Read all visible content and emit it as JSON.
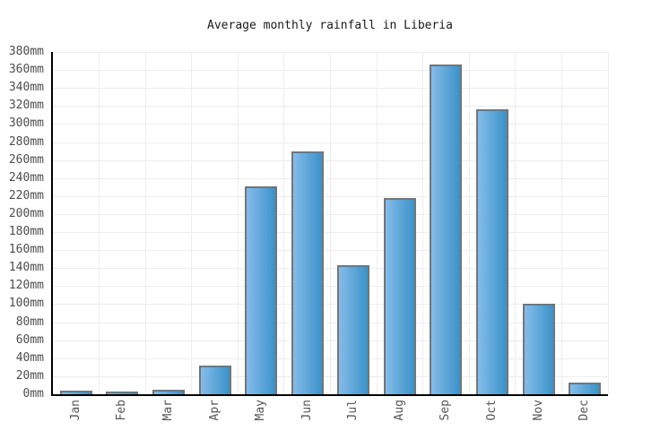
{
  "chart_data": {
    "type": "bar",
    "title": "Average monthly rainfall in Liberia",
    "unit": "mm",
    "categories": [
      "Jan",
      "Feb",
      "Mar",
      "Apr",
      "May",
      "Jun",
      "Jul",
      "Aug",
      "Sep",
      "Oct",
      "Nov",
      "Dec"
    ],
    "values": [
      4,
      2,
      5,
      32,
      231,
      270,
      143,
      218,
      366,
      316,
      100,
      13
    ],
    "xlabel": "",
    "ylabel": "",
    "ylim": [
      0,
      380
    ],
    "y_tick_step": 20,
    "y_tick_labels": [
      "0mm",
      "20mm",
      "40mm",
      "60mm",
      "80mm",
      "100mm",
      "120mm",
      "140mm",
      "160mm",
      "180mm",
      "200mm",
      "220mm",
      "240mm",
      "260mm",
      "280mm",
      "300mm",
      "320mm",
      "340mm",
      "360mm",
      "380mm"
    ],
    "grid": true,
    "legend": "none",
    "colors": {
      "bar_gradient_left": "#85bce9",
      "bar_gradient_right": "#3a92c9",
      "bar_border": "#757575",
      "axis": "#000000",
      "gridline": "#ededed",
      "title_text": "#1a1a1a",
      "y_tick_text": "#4d4d4d",
      "x_tick_text": "#555555"
    }
  }
}
